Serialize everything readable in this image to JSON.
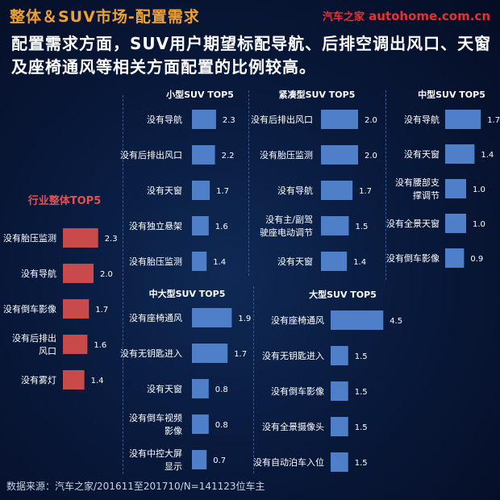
{
  "header": {
    "title": "整体＆SUV市场-配置需求",
    "brand_cn": "汽车之家",
    "brand_en": "autohome.com.cn"
  },
  "subtitle": "配置需求方面，SUV用户期望标配导航、后排空调出风口、天窗及座椅通风等相关方面配置的比例较高。",
  "source": "数据来源：汽车之家/201611至201710/N=141123位车主",
  "colors": {
    "overall_bar": "#c84a4a",
    "suv_bar": "#4f7fc8",
    "title_accent": "#f0a030",
    "overall_title": "#e55050"
  },
  "chart_data": [
    {
      "type": "bar",
      "orientation": "horizontal",
      "title": "行业整体TOP5",
      "categories": [
        "没有胎压监测",
        "没有导航",
        "没有倒车影像",
        "没有后排出风口",
        "没有雾灯"
      ],
      "values": [
        2.3,
        2.0,
        1.7,
        1.6,
        1.4
      ]
    },
    {
      "type": "bar",
      "orientation": "horizontal",
      "title": "小型SUV TOP5",
      "categories": [
        "没有导航",
        "没有后排出风口",
        "没有天窗",
        "没有独立悬架",
        "没有胎压监测"
      ],
      "values": [
        2.3,
        2.2,
        1.7,
        1.6,
        1.4
      ]
    },
    {
      "type": "bar",
      "orientation": "horizontal",
      "title": "紧凑型SUV TOP5",
      "categories": [
        "没有后排出风口",
        "没有胎压监测",
        "没有导航",
        "没有主/副驾驶座电动调节",
        "没有天窗"
      ],
      "values": [
        2.0,
        2.0,
        1.7,
        1.5,
        1.4
      ]
    },
    {
      "type": "bar",
      "orientation": "horizontal",
      "title": "中型SUV TOP5",
      "categories": [
        "没有导航",
        "没有天窗",
        "没有腰部支撑调节",
        "没有全景天窗",
        "没有倒车影像"
      ],
      "values": [
        1.7,
        1.4,
        1.0,
        1.0,
        0.9
      ]
    },
    {
      "type": "bar",
      "orientation": "horizontal",
      "title": "中大型SUV TOP5",
      "categories": [
        "没有座椅通风",
        "没有无钥匙进入",
        "没有天窗",
        "没有倒车视频影像",
        "没有中控大屏显示"
      ],
      "values": [
        1.9,
        1.7,
        0.8,
        0.8,
        0.7
      ]
    },
    {
      "type": "bar",
      "orientation": "horizontal",
      "title": "大型SUV TOP5",
      "categories": [
        "没有座椅通风",
        "没有无钥匙进入",
        "没有倒车影像",
        "没有全景摄像头",
        "没有自动泊车入位"
      ],
      "values": [
        4.5,
        1.5,
        1.5,
        1.5,
        1.5
      ]
    }
  ]
}
